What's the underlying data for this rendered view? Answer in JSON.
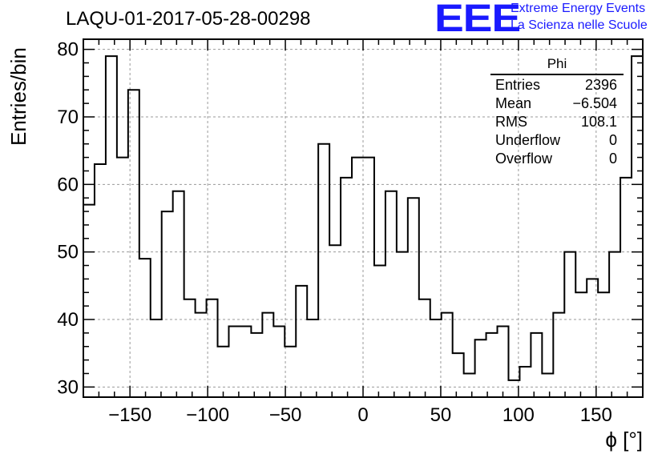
{
  "header": {
    "title": "LAQU-01-2017-05-28-00298",
    "logo_text": "EEE",
    "logo_line1": "Extreme Energy Events",
    "logo_line2": "La Scienza nelle Scuole"
  },
  "stats_box": {
    "title": "Phi",
    "rows": [
      {
        "label": "Entries",
        "value": "2396"
      },
      {
        "label": "Mean",
        "value": "−6.504"
      },
      {
        "label": "RMS",
        "value": "108.1"
      },
      {
        "label": "Underflow",
        "value": "0"
      },
      {
        "label": "Overflow",
        "value": "0"
      }
    ]
  },
  "chart_data": {
    "type": "bar",
    "subtype": "histogram-step",
    "title": "LAQU-01-2017-05-28-00298",
    "xlabel": "ϕ [°]",
    "ylabel": "Entries/bin",
    "xlim": [
      -180,
      180
    ],
    "ylim": [
      28.5,
      81.5
    ],
    "bin_width": 7.2,
    "bin_edges_start": -180,
    "x_ticks": [
      -150,
      -100,
      -50,
      0,
      50,
      100,
      150
    ],
    "x_tick_labels": [
      "−150",
      "−100",
      "−50",
      "0",
      "50",
      "100",
      "150"
    ],
    "y_ticks": [
      30,
      40,
      50,
      60,
      70,
      80
    ],
    "y_tick_labels": [
      "30",
      "40",
      "50",
      "60",
      "70",
      "80"
    ],
    "grid": true,
    "values": [
      57,
      63,
      79,
      64,
      74,
      49,
      40,
      56,
      59,
      43,
      41,
      43,
      36,
      39,
      39,
      38,
      41,
      39,
      36,
      45,
      40,
      66,
      51,
      61,
      64,
      64,
      48,
      59,
      50,
      58,
      43,
      40,
      41,
      35,
      32,
      37,
      38,
      39,
      31,
      33,
      38,
      32,
      41,
      50,
      44,
      46,
      44,
      50,
      61,
      79
    ],
    "line_color": "#000000",
    "grid_color": "#999999"
  }
}
